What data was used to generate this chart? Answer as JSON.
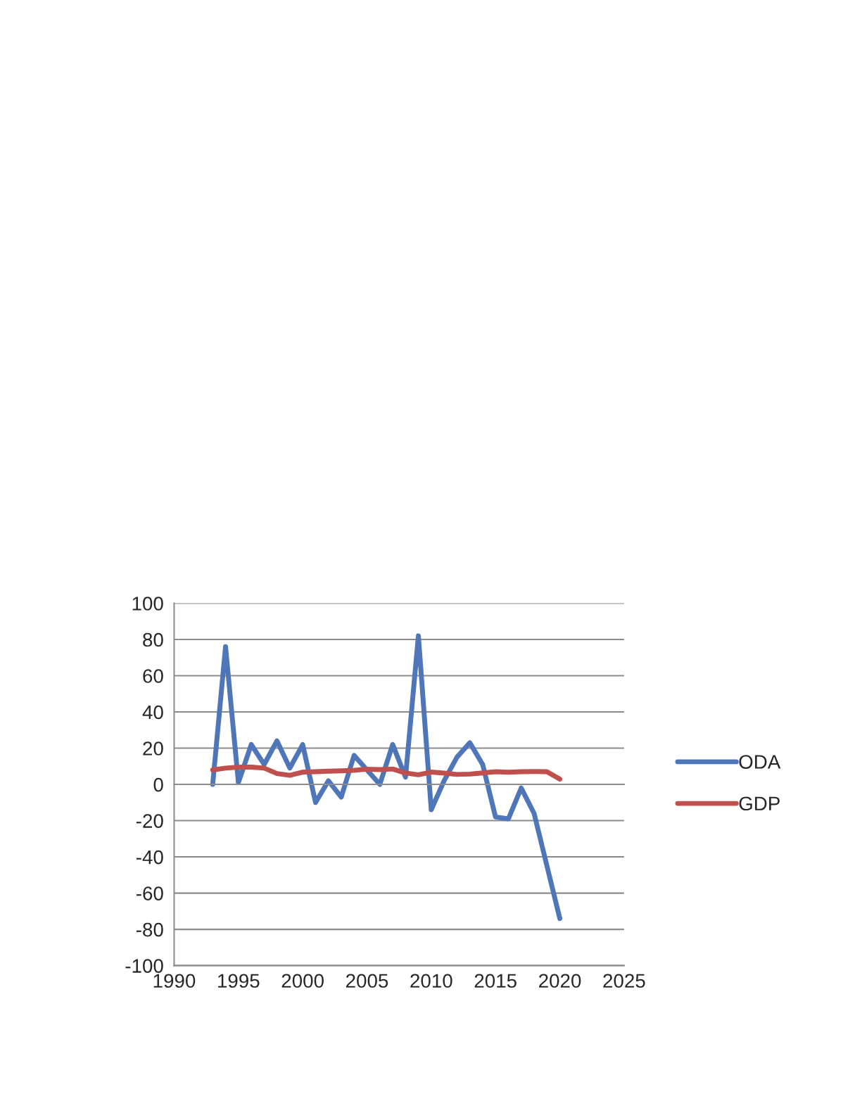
{
  "chart_data": {
    "type": "line",
    "x": [
      1993,
      1994,
      1995,
      1996,
      1997,
      1998,
      1999,
      2000,
      2001,
      2002,
      2003,
      2004,
      2005,
      2006,
      2007,
      2008,
      2009,
      2010,
      2011,
      2012,
      2013,
      2014,
      2015,
      2016,
      2017,
      2018,
      2019,
      2020
    ],
    "series": [
      {
        "name": "ODA",
        "color": "#4f76b8",
        "values": [
          0,
          76,
          1,
          22,
          11,
          24,
          9,
          22,
          -10,
          2,
          -7,
          16,
          8,
          0,
          22,
          4,
          82,
          -14,
          2,
          15,
          23,
          11,
          -18,
          -19,
          -2,
          -16,
          -45,
          -74
        ]
      },
      {
        "name": "GDP",
        "color": "#c0504d",
        "values": [
          8,
          9,
          9.5,
          9.5,
          9,
          6,
          5,
          6.8,
          7,
          7.3,
          7.5,
          7.8,
          8.4,
          8.2,
          8.5,
          6.3,
          5.3,
          6.8,
          6.2,
          5.5,
          5.7,
          6.3,
          7,
          6.7,
          7,
          7.1,
          7,
          2.9
        ]
      }
    ],
    "xlim": [
      1990,
      2025
    ],
    "xticks": [
      1990,
      1995,
      2000,
      2005,
      2010,
      2015,
      2020,
      2025
    ],
    "ylim": [
      -100,
      100
    ],
    "yticks": [
      -100,
      -80,
      -60,
      -40,
      -20,
      0,
      20,
      40,
      60,
      80,
      100
    ],
    "grid": "y",
    "legend": "right",
    "marker": "none",
    "line_style": "solid"
  }
}
